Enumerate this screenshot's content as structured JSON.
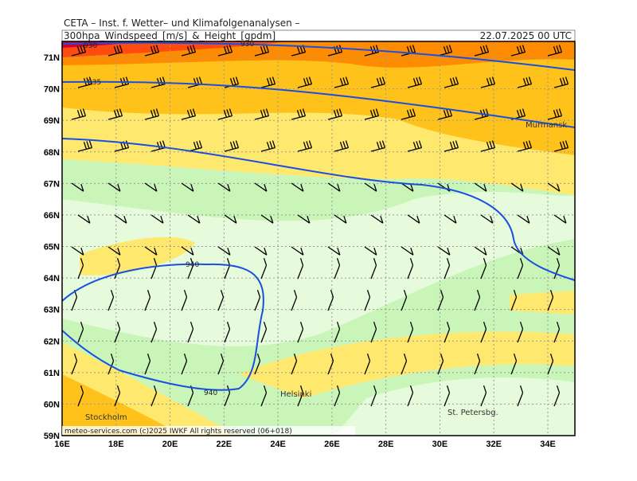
{
  "header": {
    "title": "CETA – Inst. f. Wetter– und Klimafolgenanalysen –",
    "product": "300hpa_Windspeed_[m/s]_&_Height_[gpdm]",
    "datetime": "22.07.2025 00 UTC"
  },
  "map": {
    "lat_labels": [
      "71N",
      "70N",
      "69N",
      "68N",
      "67N",
      "66N",
      "65N",
      "64N",
      "63N",
      "62N",
      "61N",
      "60N",
      "59N"
    ],
    "lon_labels": [
      "16E",
      "18E",
      "20E",
      "22E",
      "24E",
      "26E",
      "28E",
      "30E",
      "32E",
      "34E"
    ],
    "contour_labels": [
      "930",
      "930",
      "935",
      "940",
      "940"
    ],
    "places": [
      "Murmansk",
      "Helsinki",
      "Stockholm",
      "St. Petersbg."
    ],
    "credit": "meteo-services.com  (c)2025 IWKF  All rights reserved (06+018)"
  }
}
